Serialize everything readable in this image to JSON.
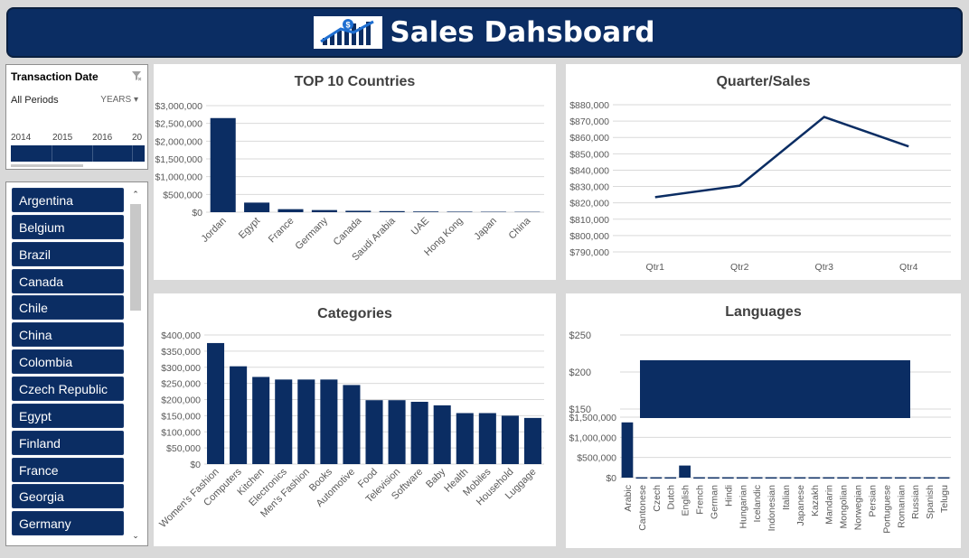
{
  "header": {
    "title": "Sales Dahsboard"
  },
  "timeline": {
    "title": "Transaction Date",
    "periods": "All Periods",
    "level": "YEARS",
    "years": [
      "2014",
      "2015",
      "2016",
      "20"
    ]
  },
  "slicer": {
    "items": [
      "Argentina",
      "Belgium",
      "Brazil",
      "Canada",
      "Chile",
      "China",
      "Colombia",
      "Czech Republic",
      "Egypt",
      "Finland",
      "France",
      "Georgia",
      "Germany"
    ]
  },
  "colors": {
    "bar": "#0b2d63",
    "header": "#0b2d63",
    "grid": "#d9d9d9"
  },
  "chart_data": [
    {
      "id": "countries",
      "type": "bar",
      "title": "TOP 10 Countries",
      "categories": [
        "Jordan",
        "Egypt",
        "France",
        "Germany",
        "Canada",
        "Saudi Arabia",
        "UAE",
        "Hong Kong",
        "Japan",
        "China"
      ],
      "values": [
        2650000,
        270000,
        85000,
        60000,
        40000,
        30000,
        20000,
        15000,
        12000,
        10000
      ],
      "ylim": [
        0,
        3000000
      ],
      "yticks": [
        "$0",
        "$500,000",
        "$1,000,000",
        "$1,500,000",
        "$2,000,000",
        "$2,500,000",
        "$3,000,000"
      ],
      "grid": true
    },
    {
      "id": "quarter",
      "type": "line",
      "title": "Quarter/Sales",
      "categories": [
        "Qtr1",
        "Qtr2",
        "Qtr3",
        "Qtr4"
      ],
      "values": [
        823500,
        830500,
        872500,
        854500
      ],
      "ylim": [
        790000,
        880000
      ],
      "yticks": [
        "$790,000",
        "$800,000",
        "$810,000",
        "$820,000",
        "$830,000",
        "$840,000",
        "$850,000",
        "$860,000",
        "$870,000",
        "$880,000"
      ],
      "grid": true
    },
    {
      "id": "categories",
      "type": "bar",
      "title": "Categories",
      "categories": [
        "Women's Fashion",
        "Computers",
        "Kitchen",
        "Electronics",
        "Men's Fashion",
        "Books",
        "Automotive",
        "Food",
        "Television",
        "Software",
        "Baby",
        "Health",
        "Mobiles",
        "Household",
        "Luggage"
      ],
      "values": [
        375000,
        303000,
        270000,
        262000,
        262000,
        262000,
        245000,
        198000,
        198000,
        193000,
        182000,
        158000,
        158000,
        150000,
        143000
      ],
      "ylim": [
        0,
        400000
      ],
      "yticks": [
        "$0",
        "$50,000",
        "$100,000",
        "$150,000",
        "$200,000",
        "$250,000",
        "$300,000",
        "$350,000",
        "$400,000"
      ],
      "grid": true
    },
    {
      "id": "languages",
      "type": "bar",
      "title": "Languages",
      "categories": [
        "Arabic",
        "Cantonese",
        "Czech",
        "Dutch",
        "English",
        "French",
        "German",
        "Hindi",
        "Hungarian",
        "Icelandic",
        "Indonesian",
        "Italian",
        "Japanese",
        "Kazakh",
        "Mandarin",
        "Mongolian",
        "Norwegian",
        "Persian",
        "Portuguese",
        "Romanian",
        "Russian",
        "Spanish",
        "Telugu"
      ],
      "values": [
        1370000,
        10000,
        10000,
        10000,
        300000,
        10000,
        10000,
        10000,
        10000,
        10000,
        10000,
        10000,
        10000,
        10000,
        10000,
        10000,
        10000,
        10000,
        10000,
        10000,
        10000,
        10000,
        10000
      ],
      "ylim": [
        0,
        1500000
      ],
      "yticks": [
        "$0",
        "$500,000",
        "$1,000,000",
        "$1,500,000"
      ],
      "overlay_yticks": [
        "$150",
        "$200",
        "$250"
      ],
      "grid": true
    }
  ]
}
